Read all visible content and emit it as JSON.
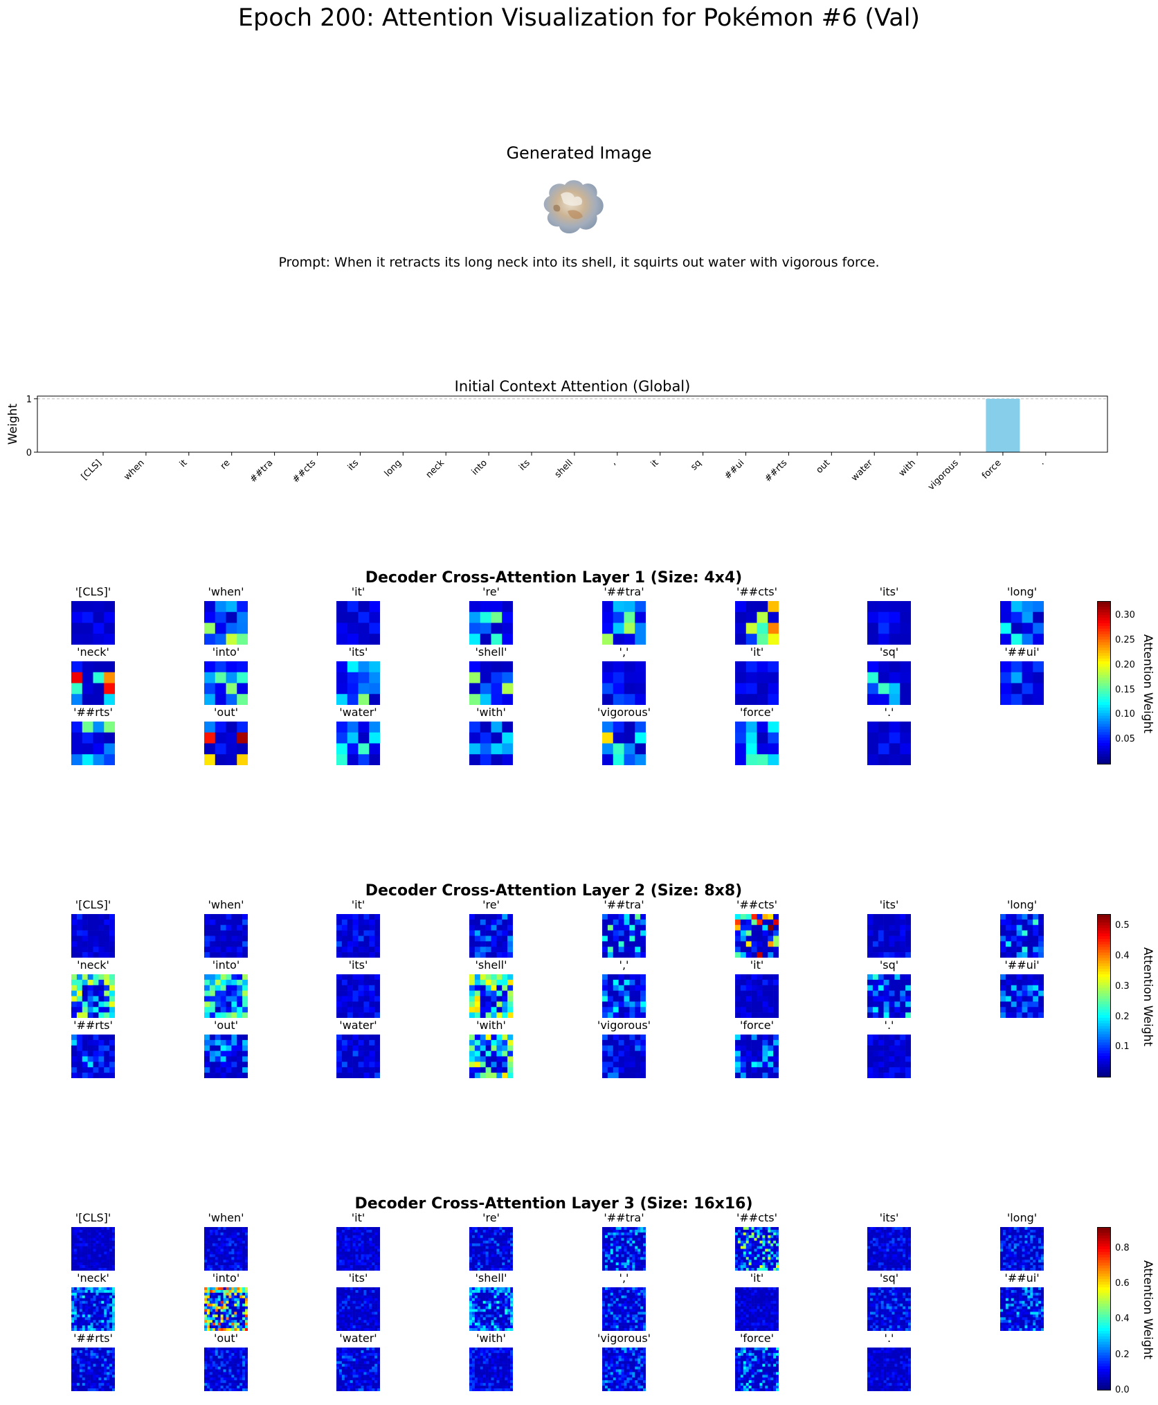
{
  "title": "Epoch 200: Attention Visualization for Pokémon #6 (Val)",
  "generated_image_title": "Generated Image",
  "prompt": "Prompt: When it retracts its long neck into its shell, it squirts out water with vigorous force.",
  "colors": {
    "bar": "#87ceeb",
    "colormap": "jet"
  },
  "chart_data": [
    {
      "type": "bar",
      "title": "Initial Context Attention (Global)",
      "xlabel": "",
      "ylabel": "Weight",
      "ylim": [
        0,
        1.05
      ],
      "yticks": [
        "0",
        "1"
      ],
      "grid": "dashed line at y=1",
      "categories": [
        "[CLS]",
        "when",
        "it",
        "re",
        "##tra",
        "##cts",
        "its",
        "long",
        "neck",
        "into",
        "its",
        "shell",
        ",",
        "it",
        "sq",
        "##ui",
        "##rts",
        "out",
        "water",
        "with",
        "vigorous",
        "force",
        "."
      ],
      "values": [
        0,
        0,
        0,
        0,
        0,
        0,
        0,
        0,
        0,
        0,
        0,
        0,
        0,
        0,
        0,
        0,
        0,
        0,
        0,
        0,
        0,
        1,
        0
      ]
    },
    {
      "type": "heatmap",
      "title": "Decoder Cross-Attention Layer 1 (Size: 4x4)",
      "grid_size": 4,
      "colorbar_label": "Attention Weight",
      "colorbar_ticks": [
        "0.05",
        "0.10",
        "0.15",
        "0.20",
        "0.25",
        "0.30"
      ],
      "vmin": 0.0,
      "vmax": 0.33,
      "tokens": [
        "'[CLS]'",
        "'when'",
        "'it'",
        "'re'",
        "'##tra'",
        "'##cts'",
        "'its'",
        "'long'",
        "'neck'",
        "'into'",
        "'its'",
        "'shell'",
        "','",
        "'it'",
        "'sq'",
        "'##ui'",
        "'##rts'",
        "'out'",
        "'water'",
        "'with'",
        "'vigorous'",
        "'force'",
        "'.'"
      ]
    },
    {
      "type": "heatmap",
      "title": "Decoder Cross-Attention Layer 2 (Size: 8x8)",
      "grid_size": 8,
      "colorbar_label": "Attention Weight",
      "colorbar_ticks": [
        "0.1",
        "0.2",
        "0.3",
        "0.4",
        "0.5"
      ],
      "vmin": 0.0,
      "vmax": 0.54,
      "tokens": [
        "'[CLS]'",
        "'when'",
        "'it'",
        "'re'",
        "'##tra'",
        "'##cts'",
        "'its'",
        "'long'",
        "'neck'",
        "'into'",
        "'its'",
        "'shell'",
        "','",
        "'it'",
        "'sq'",
        "'##ui'",
        "'##rts'",
        "'out'",
        "'water'",
        "'with'",
        "'vigorous'",
        "'force'",
        "'.'"
      ]
    },
    {
      "type": "heatmap",
      "title": "Decoder Cross-Attention Layer 3 (Size: 16x16)",
      "grid_size": 16,
      "colorbar_label": "Attention Weight",
      "colorbar_ticks": [
        "0.0",
        "0.2",
        "0.4",
        "0.6",
        "0.8"
      ],
      "vmin": 0.0,
      "vmax": 0.92,
      "tokens": [
        "'[CLS]'",
        "'when'",
        "'it'",
        "'re'",
        "'##tra'",
        "'##cts'",
        "'its'",
        "'long'",
        "'neck'",
        "'into'",
        "'its'",
        "'shell'",
        "','",
        "'it'",
        "'sq'",
        "'##ui'",
        "'##rts'",
        "'out'",
        "'water'",
        "'with'",
        "'vigorous'",
        "'force'",
        "'.'"
      ]
    }
  ]
}
